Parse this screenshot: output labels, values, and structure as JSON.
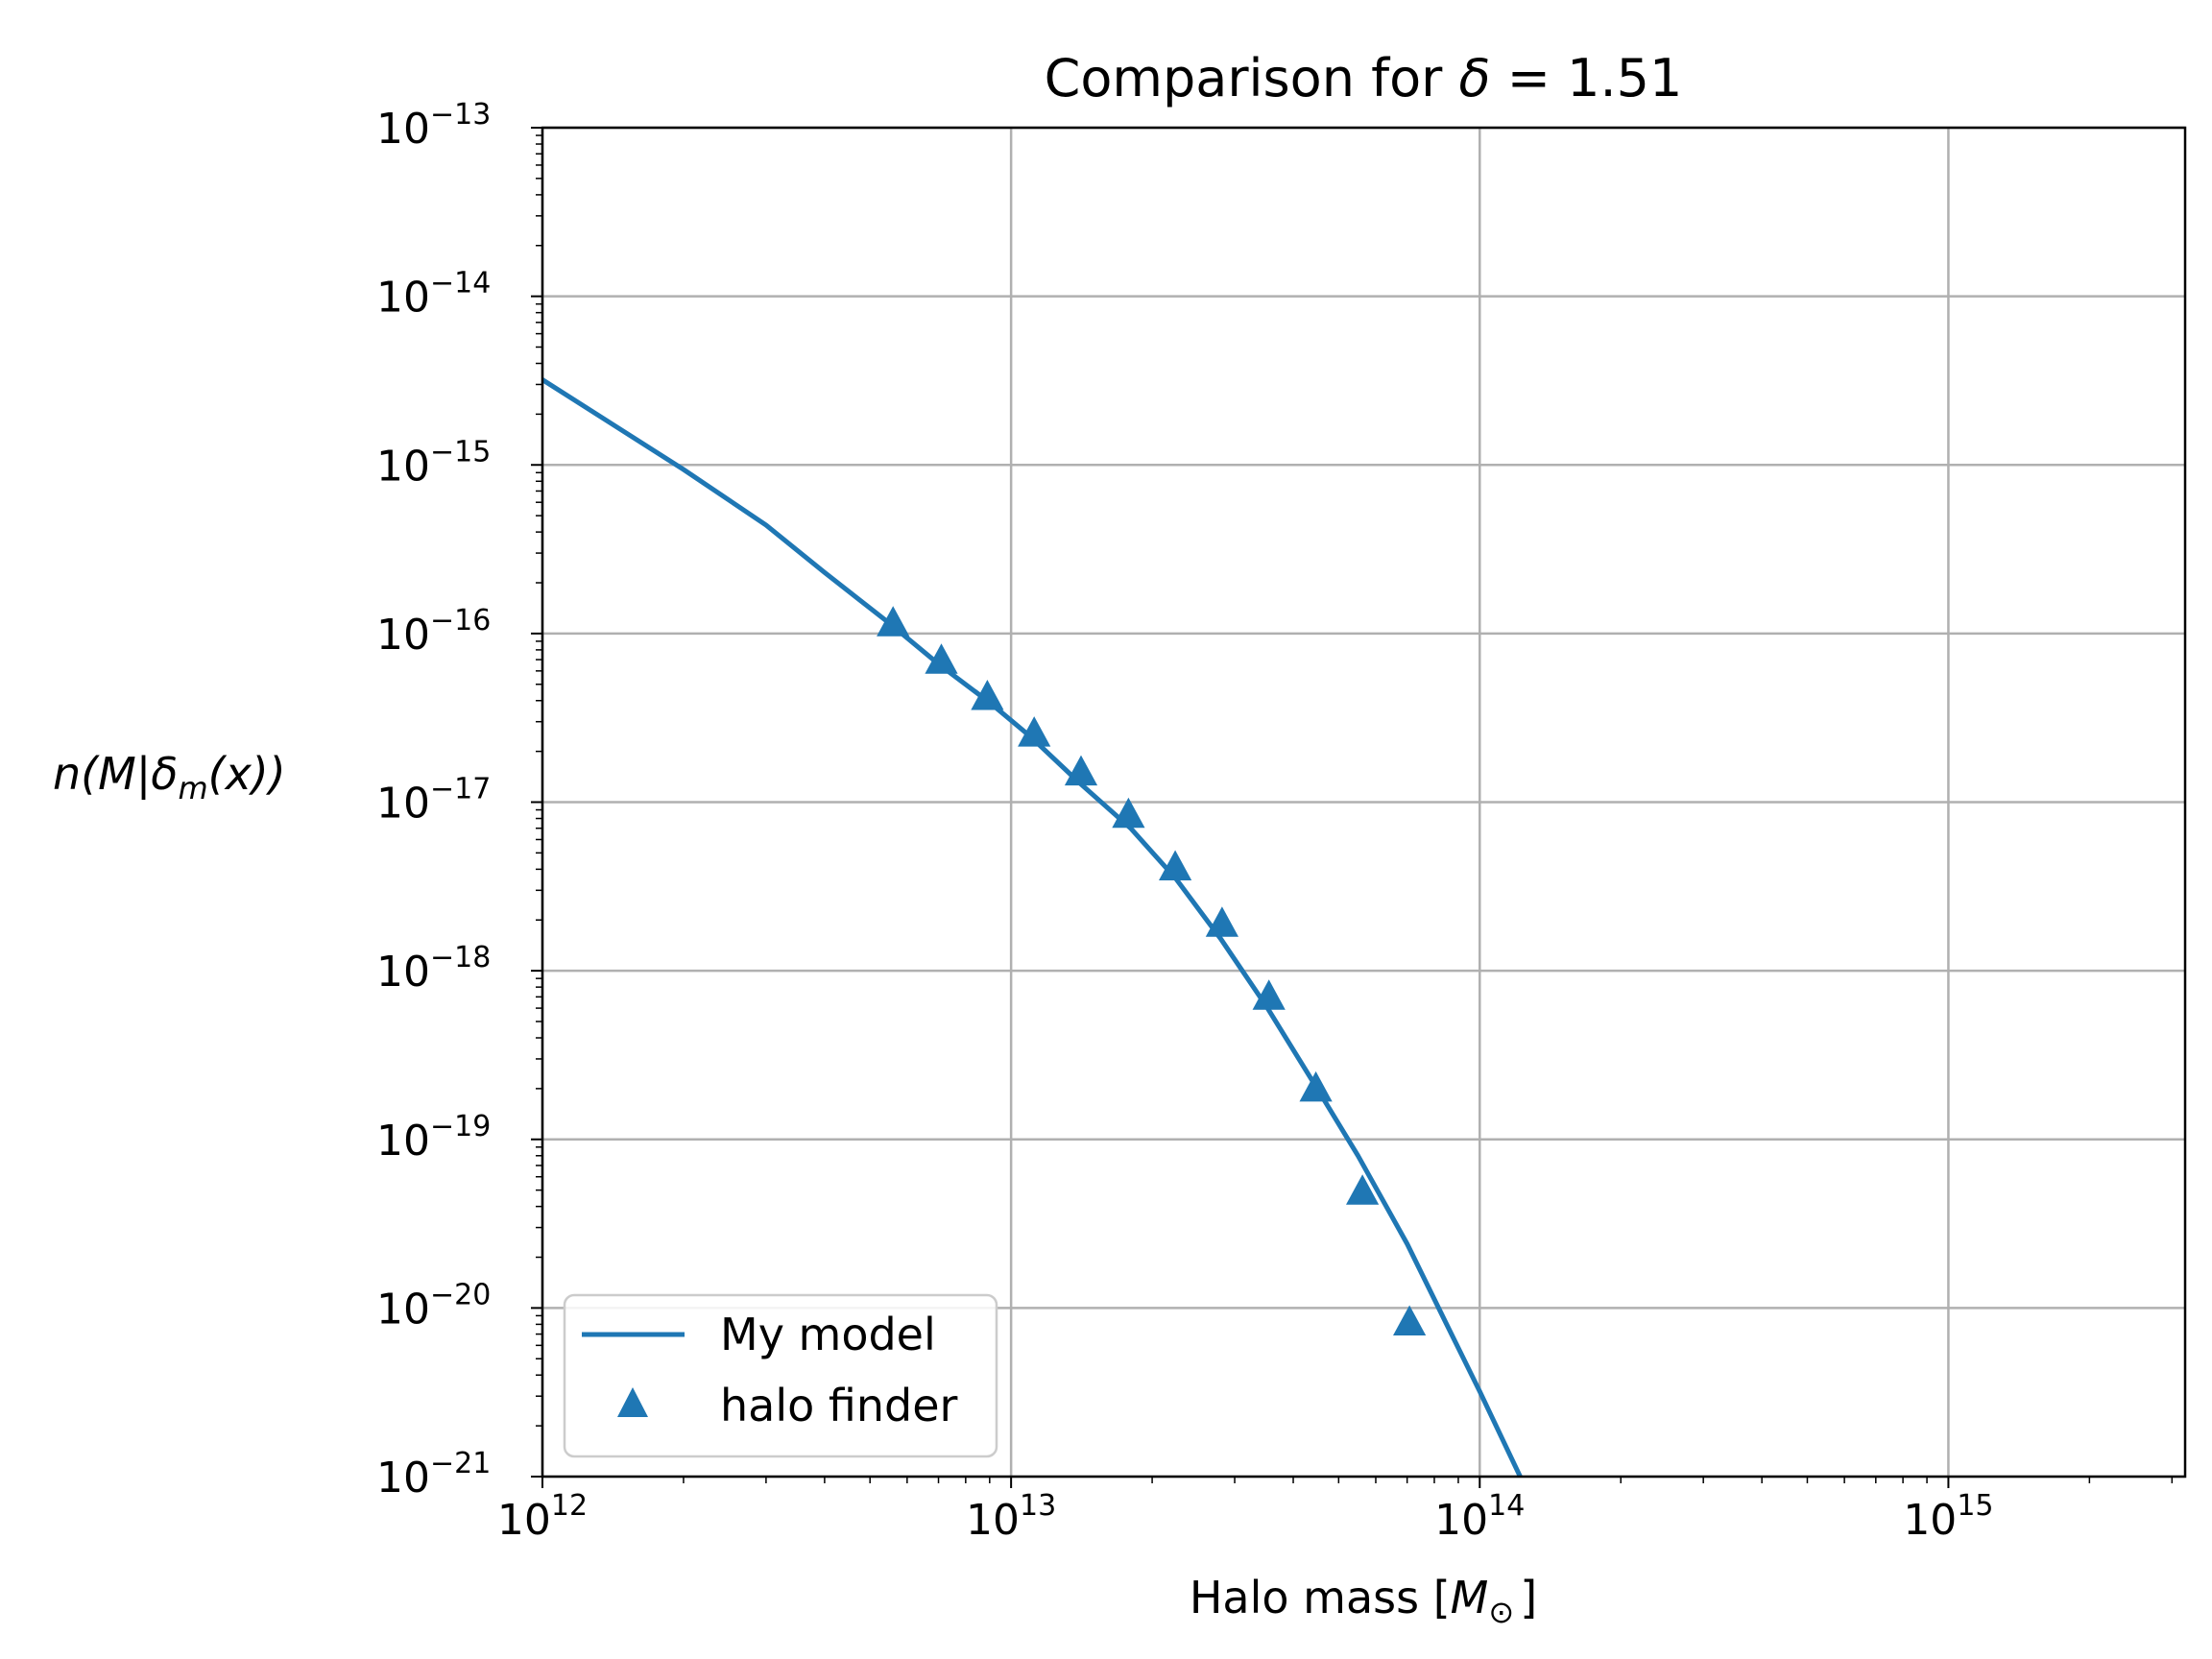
{
  "chart_data": {
    "type": "line",
    "title": {
      "text": "Comparison for ",
      "symbol": "δ",
      "rest": " = 1.51"
    },
    "xlabel": {
      "text": "Halo mass [",
      "symbol": "M",
      "sub": "⊙",
      "close": "]"
    },
    "ylabel": {
      "pre": "n(M|",
      "symbol": "δ",
      "sub": "m",
      "post": "(x))"
    },
    "x_scale": "log",
    "y_scale": "log",
    "xlim": [
      1000000000000.0,
      3200000000000000.0
    ],
    "ylim": [
      1e-21,
      1e-13
    ],
    "x_ticks": [
      {
        "base": "10",
        "exp": "12",
        "value": 1000000000000.0
      },
      {
        "base": "10",
        "exp": "13",
        "value": 10000000000000.0
      },
      {
        "base": "10",
        "exp": "14",
        "value": 100000000000000.0
      },
      {
        "base": "10",
        "exp": "15",
        "value": 1000000000000000.0
      }
    ],
    "y_ticks": [
      {
        "base": "10",
        "exp": "−13",
        "value": 1e-13
      },
      {
        "base": "10",
        "exp": "−14",
        "value": 1e-14
      },
      {
        "base": "10",
        "exp": "−15",
        "value": 1e-15
      },
      {
        "base": "10",
        "exp": "−16",
        "value": 1e-16
      },
      {
        "base": "10",
        "exp": "−17",
        "value": 1e-17
      },
      {
        "base": "10",
        "exp": "−18",
        "value": 1e-18
      },
      {
        "base": "10",
        "exp": "−19",
        "value": 1e-19
      },
      {
        "base": "10",
        "exp": "−20",
        "value": 1e-20
      },
      {
        "base": "10",
        "exp": "−21",
        "value": 1e-21
      }
    ],
    "grid": true,
    "legend_position": "lower-left",
    "color": "#1f77b4",
    "series": [
      {
        "name": "My model",
        "kind": "line",
        "points": [
          [
            1000000000000.0,
            3.2e-15
          ],
          [
            2000000000000.0,
            9.4e-16
          ],
          [
            3000000000000.0,
            4.4e-16
          ],
          [
            4000000000000.0,
            2.3e-16
          ],
          [
            5500000000000.0,
            1.15e-16
          ],
          [
            7000000000000.0,
            6.6e-17
          ],
          [
            9000000000000.0,
            3.9e-17
          ],
          [
            11000000000000.0,
            2.45e-17
          ],
          [
            14000000000000.0,
            1.3e-17
          ],
          [
            18000000000000.0,
            7e-18
          ],
          [
            22500000000000.0,
            3.5e-18
          ],
          [
            28000000000000.0,
            1.55e-18
          ],
          [
            35000000000000.0,
            6.2e-19
          ],
          [
            45000000000000.0,
            2e-19
          ],
          [
            55000000000000.0,
            8e-20
          ],
          [
            70000000000000.0,
            2.4e-20
          ],
          [
            85000000000000.0,
            8e-21
          ],
          [
            100000000000000.0,
            3.2e-21
          ],
          [
            122000000000000.0,
            1e-21
          ]
        ]
      },
      {
        "name": "halo finder",
        "kind": "scatter",
        "marker": "triangle",
        "points": [
          [
            5600000000000.0,
            1.15e-16
          ],
          [
            7100000000000.0,
            6.9e-17
          ],
          [
            8900000000000.0,
            4.2e-17
          ],
          [
            11200000000000.0,
            2.55e-17
          ],
          [
            14100000000000.0,
            1.5e-17
          ],
          [
            17800000000000.0,
            8.4e-18
          ],
          [
            22400000000000.0,
            4.1e-18
          ],
          [
            28200000000000.0,
            1.9e-18
          ],
          [
            35500000000000.0,
            7e-19
          ],
          [
            44700000000000.0,
            2e-19
          ],
          [
            56200000000000.0,
            4.9e-20
          ],
          [
            70800000000000.0,
            8.2e-21
          ]
        ]
      }
    ]
  }
}
